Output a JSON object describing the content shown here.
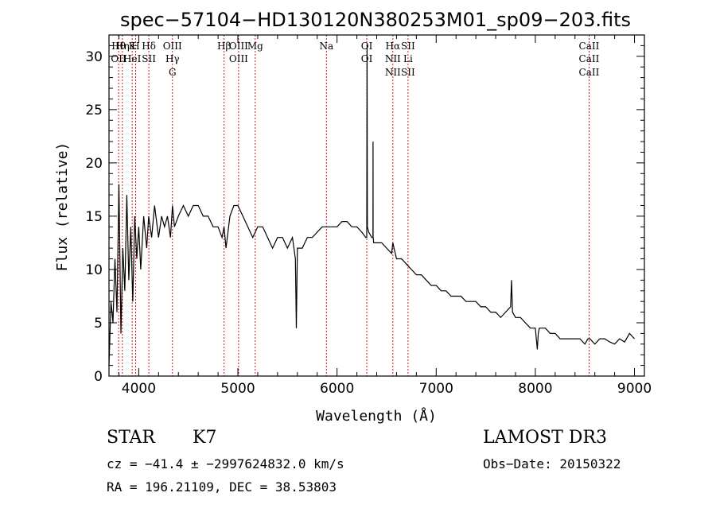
{
  "chart_data": {
    "type": "line",
    "title": "spec−57104−HD130120N380253M01_sp09−203.fits",
    "xlabel": "Wavelength (Å)",
    "ylabel": "Flux (relative)",
    "xlim": [
      3700,
      9100
    ],
    "ylim": [
      0,
      32
    ],
    "xticks": [
      4000,
      5000,
      6000,
      7000,
      8000,
      9000
    ],
    "yticks": [
      0,
      5,
      10,
      15,
      20,
      25,
      30
    ],
    "grid": false,
    "series": [
      {
        "name": "flux",
        "x": [
          3700,
          3720,
          3740,
          3760,
          3780,
          3800,
          3820,
          3840,
          3860,
          3880,
          3900,
          3920,
          3940,
          3960,
          3980,
          4000,
          4020,
          4050,
          4080,
          4100,
          4130,
          4160,
          4200,
          4230,
          4260,
          4290,
          4320,
          4340,
          4360,
          4400,
          4450,
          4500,
          4550,
          4600,
          4650,
          4700,
          4750,
          4800,
          4840,
          4860,
          4880,
          4920,
          4960,
          5000,
          5050,
          5100,
          5150,
          5200,
          5250,
          5300,
          5350,
          5400,
          5450,
          5500,
          5550,
          5580,
          5590,
          5600,
          5650,
          5700,
          5750,
          5800,
          5850,
          5890,
          5900,
          5950,
          6000,
          6050,
          6100,
          6150,
          6200,
          6250,
          6290,
          6300,
          6303,
          6306,
          6320,
          6350,
          6362,
          6363,
          6364,
          6370,
          6400,
          6450,
          6500,
          6550,
          6563,
          6600,
          6650,
          6700,
          6750,
          6800,
          6850,
          6900,
          6950,
          7000,
          7050,
          7100,
          7150,
          7200,
          7250,
          7300,
          7350,
          7400,
          7450,
          7500,
          7550,
          7600,
          7650,
          7700,
          7750,
          7760,
          7770,
          7800,
          7850,
          7900,
          7950,
          8000,
          8020,
          8030,
          8040,
          8050,
          8100,
          8150,
          8200,
          8250,
          8300,
          8350,
          8400,
          8450,
          8500,
          8530,
          8550,
          8600,
          8650,
          8700,
          8750,
          8800,
          8850,
          8900,
          8950,
          9000
        ],
        "y": [
          1,
          7,
          5,
          11,
          6,
          18,
          4,
          12,
          8,
          17,
          9,
          14,
          7,
          15,
          11,
          14,
          10,
          15,
          12,
          15,
          13,
          16,
          13,
          15,
          14,
          15,
          13,
          16,
          14,
          15,
          16,
          15,
          16,
          16,
          15,
          15,
          14,
          14,
          13,
          14,
          12,
          15,
          16,
          16,
          15,
          14,
          13,
          14,
          14,
          13,
          12,
          13,
          13,
          12,
          13,
          11,
          4.5,
          12,
          12,
          13,
          13,
          13.5,
          14,
          14,
          14,
          14,
          14,
          14.5,
          14.5,
          14,
          14,
          13.5,
          13,
          13,
          31,
          14,
          13.5,
          13,
          13,
          22,
          13,
          12.5,
          12.5,
          12.5,
          12,
          11.5,
          12.5,
          11,
          11,
          10.5,
          10,
          9.5,
          9.5,
          9,
          8.5,
          8.5,
          8,
          8,
          7.5,
          7.5,
          7.5,
          7,
          7,
          7,
          6.5,
          6.5,
          6,
          6,
          5.5,
          6,
          6.5,
          9,
          6,
          5.5,
          5.5,
          5,
          4.5,
          4.5,
          2.5,
          4,
          4.5,
          4.5,
          4.5,
          4,
          4,
          3.5,
          3.5,
          3.5,
          3.5,
          3.5,
          3,
          3.5,
          3.5,
          3,
          3.5,
          3.5,
          3.2,
          3,
          3.5,
          3.2,
          4,
          3.5
        ]
      }
    ],
    "annotations": [
      {
        "labels": [
          "Hθ",
          "OII"
        ],
        "x": 3797
      },
      {
        "labels": [
          "Hη"
        ],
        "x": 3835
      },
      {
        "labels": [
          "K",
          "HeI"
        ],
        "x": 3934
      },
      {
        "labels": [
          "H"
        ],
        "x": 3969
      },
      {
        "labels": [
          "Hδ",
          "SII"
        ],
        "x": 4102
      },
      {
        "labels": [
          "OIII",
          "Hγ",
          "G"
        ],
        "x": 4340
      },
      {
        "labels": [
          "Hβ"
        ],
        "x": 4861
      },
      {
        "labels": [
          "OIII",
          "OIII"
        ],
        "x": 5007
      },
      {
        "labels": [
          "Mg"
        ],
        "x": 5175
      },
      {
        "labels": [
          "Na"
        ],
        "x": 5893
      },
      {
        "labels": [
          "OI",
          "OI"
        ],
        "x": 6300
      },
      {
        "labels": [
          "Hα",
          "NII",
          "NII"
        ],
        "x": 6563
      },
      {
        "labels": [
          "SII",
          "Li",
          "SII"
        ],
        "x": 6716
      },
      {
        "labels": [
          "CaII",
          "CaII",
          "CaII"
        ],
        "x": 8542
      }
    ]
  },
  "footer": {
    "object_type": "STAR",
    "subclass": "K7",
    "survey": "LAMOST DR3",
    "redshift": "cz = −41.4 ± −2997624832.0 km/s",
    "obs_date": "Obs−Date: 20150322",
    "coords": "RA = 196.21109, DEC =  38.53803"
  },
  "colors": {
    "spectrum": "#000000",
    "line_marker": "#cc0000"
  }
}
